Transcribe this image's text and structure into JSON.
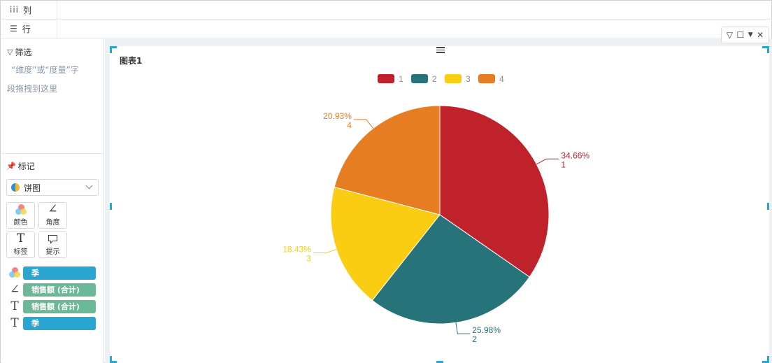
{
  "shelves": {
    "columns": {
      "icon": "column-icon",
      "label": "列"
    },
    "rows": {
      "icon": "row-icon",
      "label": "行"
    }
  },
  "filter": {
    "title": "筛选",
    "hint_line1": "“维度”或“度量”字",
    "hint_line2": "段拖拽到这里"
  },
  "marks": {
    "title": "标记",
    "chart_type": "饼图",
    "buttons": [
      {
        "label": "颜色",
        "icon": "color-bubbles-icon"
      },
      {
        "label": "角度",
        "icon": "angle-icon"
      },
      {
        "label": "标签",
        "icon": "text-t-icon"
      },
      {
        "label": "提示",
        "icon": "tooltip-icon"
      }
    ],
    "pills": [
      {
        "icon": "color-bubbles-icon",
        "label": "季",
        "color": "#2ba5d1"
      },
      {
        "icon": "angle-icon",
        "label": "销售额 (合计)",
        "color": "#6ab897"
      },
      {
        "icon": "text-t-icon",
        "label": "销售额 (合计)",
        "color": "#6ab897"
      },
      {
        "icon": "text-t-icon",
        "label": "季",
        "color": "#2ba5d1"
      }
    ]
  },
  "widget": {
    "title": "图表1",
    "toolbox_icons": [
      "filter-icon",
      "maximize-icon",
      "dropdown-icon",
      "close-icon"
    ]
  },
  "chart_data": {
    "type": "pie",
    "title": "图表1",
    "categories": [
      "1",
      "2",
      "3",
      "4"
    ],
    "values": [
      34.66,
      25.98,
      18.43,
      20.93
    ],
    "labels": [
      "34.66%",
      "25.98%",
      "18.43%",
      "20.93%"
    ],
    "colors": [
      "#c0222b",
      "#26737a",
      "#facc12",
      "#e67d22"
    ],
    "legend": "top-center"
  }
}
